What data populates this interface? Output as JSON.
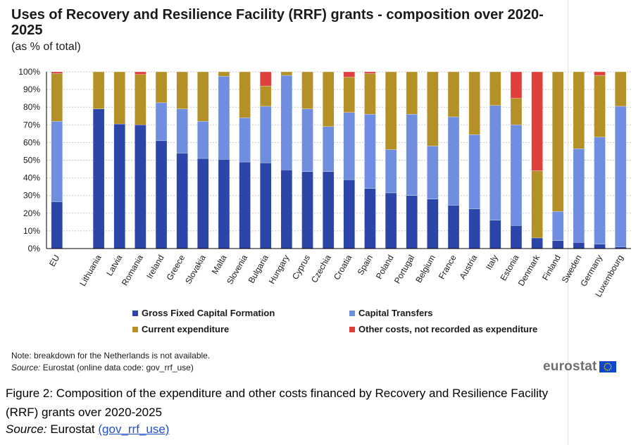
{
  "header": {
    "title": "Uses of Recovery and Resilience Facility (RRF) grants - composition over 2020-2025",
    "subtitle": "(as % of total)"
  },
  "legend": {
    "items": [
      {
        "label": "Gross Fixed Capital Formation",
        "color": "#2b45a8"
      },
      {
        "label": "Capital Transfers",
        "color": "#6f8ee0"
      },
      {
        "label": "Current expenditure",
        "color": "#b39126"
      },
      {
        "label": "Other costs, not recorded as expenditure",
        "color": "#e0403c"
      }
    ]
  },
  "notes": {
    "note": "Note: breakdown for the Netherlands is not available.",
    "source_label": "Source:",
    "source_text": "Eurostat (online data code: gov_rrf_use)"
  },
  "logo": {
    "text": "eurostat",
    "flag_icon": "eu-flag-icon"
  },
  "caption": {
    "text": "Figure 2: Composition of the expenditure and other costs financed by Recovery and Resilience Facility (RRF) grants over 2020-2025",
    "source_label": "Source:",
    "source_text": "Eurostat",
    "link_text": "(gov_rrf_use)"
  },
  "chart_data": {
    "type": "bar",
    "stacked": true,
    "categories": [
      "EU",
      "",
      "Lithuania",
      "Latvia",
      "Romania",
      "Ireland",
      "Greece",
      "Slovakia",
      "Malta",
      "Slovenia",
      "Bulgaria",
      "Hungary",
      "Cyprus",
      "Czechia",
      "Croatia",
      "Spain",
      "Poland",
      "Portugal",
      "Belgium",
      "France",
      "Austria",
      "Italy",
      "Estonia",
      "Denmark",
      "Finland",
      "Sweden",
      "Germany",
      "Luxembourg"
    ],
    "series": [
      {
        "name": "Gross Fixed Capital Formation",
        "color": "#2b45a8",
        "values": [
          26.5,
          0,
          79,
          70.5,
          70,
          61,
          54,
          51,
          50.5,
          49,
          48.5,
          44.5,
          43.5,
          43.5,
          39,
          34,
          31.5,
          30,
          28,
          24.5,
          22.5,
          16,
          13,
          6,
          4.5,
          3.5,
          2.5,
          1
        ]
      },
      {
        "name": "Capital Transfers",
        "color": "#6f8ee0",
        "values": [
          45.5,
          0,
          0,
          0,
          0,
          21.5,
          25,
          21,
          47,
          25,
          32,
          53.5,
          35.5,
          25.5,
          38,
          42,
          24.5,
          46,
          30,
          50,
          42,
          65,
          57,
          0,
          16.5,
          53,
          60.5,
          79.5
        ]
      },
      {
        "name": "Current expenditure",
        "color": "#b39126",
        "values": [
          27,
          0,
          21,
          29.5,
          28.5,
          17.5,
          21,
          28,
          2.5,
          26,
          11.5,
          2,
          21,
          31,
          20,
          23,
          44,
          24,
          42,
          25.5,
          35.5,
          19,
          15,
          38,
          79,
          43.5,
          35,
          19.5
        ]
      },
      {
        "name": "Other costs, not recorded as expenditure",
        "color": "#e0403c",
        "values": [
          1,
          0,
          0,
          0,
          1.5,
          0,
          0,
          0,
          0,
          0,
          8,
          0,
          0,
          0,
          3,
          1,
          0,
          0,
          0,
          0,
          0,
          0,
          15,
          56,
          0,
          0,
          2,
          0
        ]
      }
    ],
    "ylim": [
      0,
      100
    ],
    "yticks": [
      "0%",
      "10%",
      "20%",
      "30%",
      "40%",
      "50%",
      "60%",
      "70%",
      "80%",
      "90%",
      "100%"
    ],
    "grid": "horizontal dashed",
    "legend_position": "bottom"
  }
}
